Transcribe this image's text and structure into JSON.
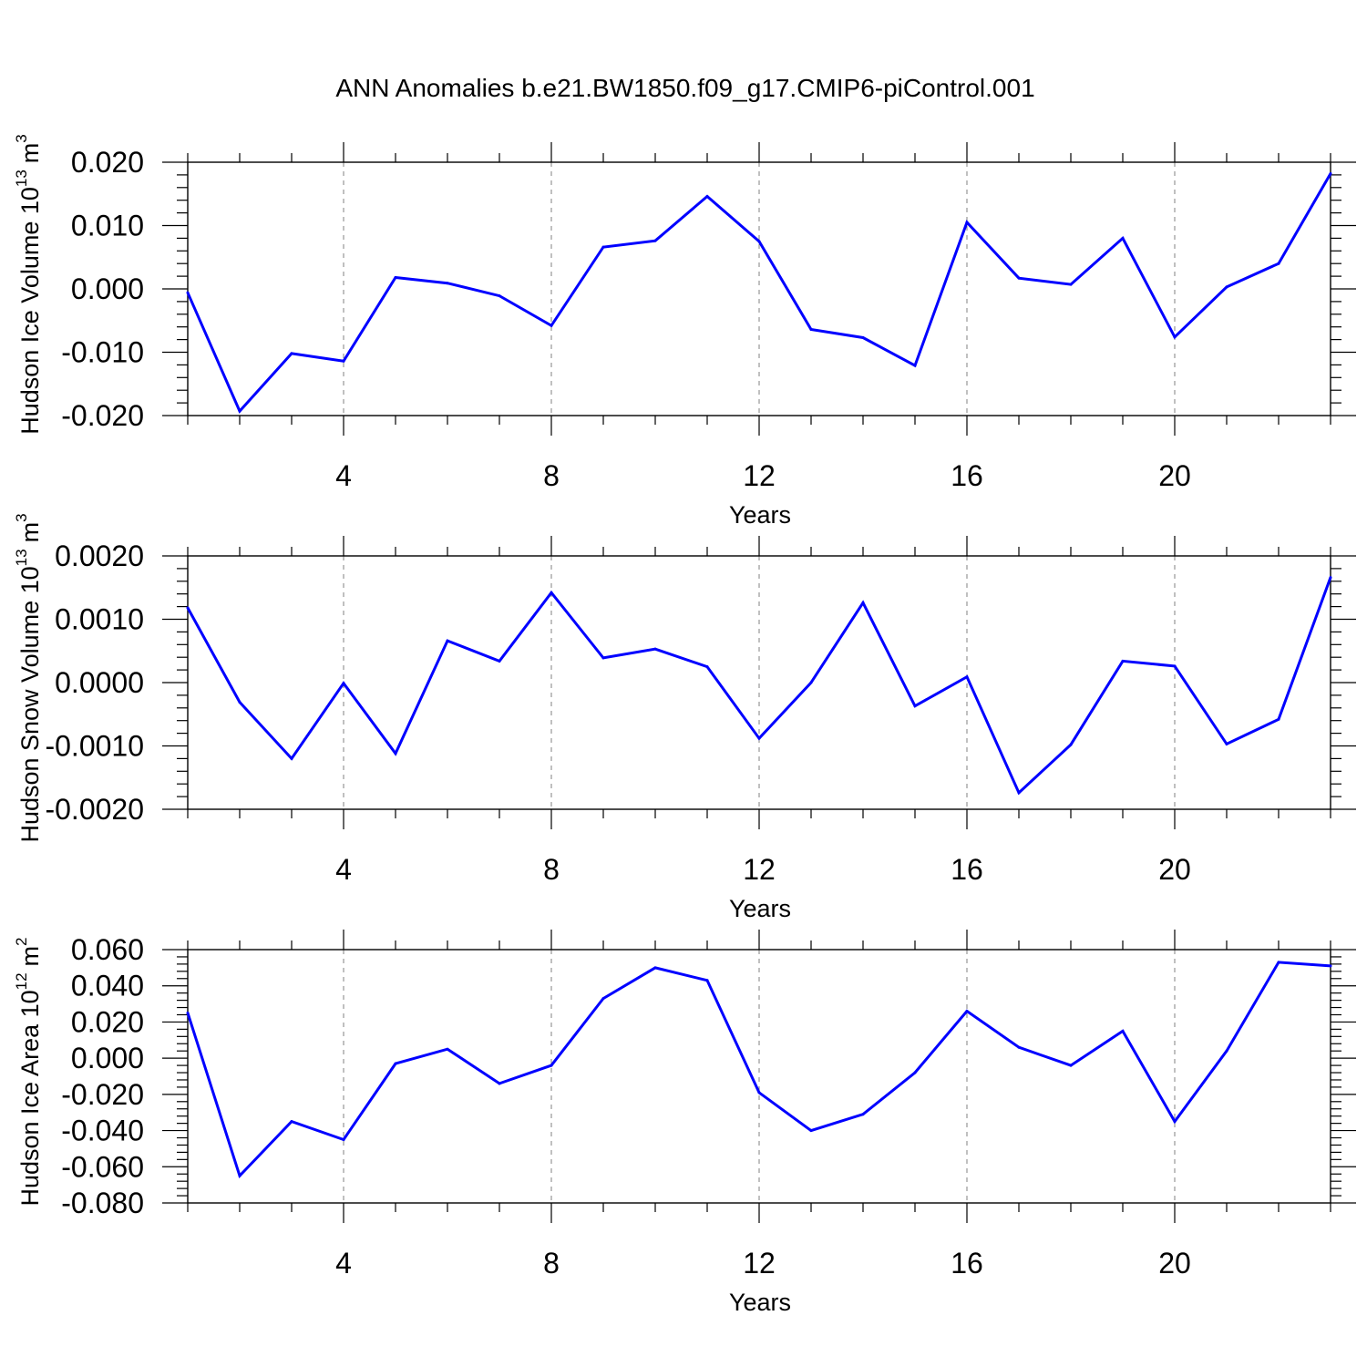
{
  "title": "ANN Anomalies b.e21.BW1850.f09_g17.CMIP6-piControl.001",
  "line_color": "#0000ff",
  "chart_data": [
    {
      "type": "line",
      "title": "",
      "ylabel_main": "Hudson Ice Volume 10",
      "ylabel_exp": "13",
      "ylabel_unit": "m",
      "ylabel_unit_exp": "3",
      "xlabel": "Years",
      "xlim": [
        1,
        23
      ],
      "ylim": [
        -0.02,
        0.02
      ],
      "xticks": [
        "4",
        "8",
        "12",
        "16",
        "20"
      ],
      "yticks": [
        "0.020",
        "0.010",
        "0.000",
        "-0.010",
        "-0.020"
      ],
      "grid_x": true,
      "series": [
        {
          "x": [
            1,
            2,
            3,
            4,
            5,
            6,
            7,
            8,
            9,
            10,
            11,
            12,
            13,
            14,
            15,
            16,
            17,
            18,
            19,
            20,
            21,
            22,
            23
          ],
          "values": [
            -0.0006,
            -0.0193,
            -0.0102,
            -0.0114,
            0.0018,
            0.0009,
            -0.0011,
            -0.0058,
            0.0066,
            0.0076,
            0.0146,
            0.0075,
            -0.0064,
            -0.0077,
            -0.0121,
            0.0105,
            0.0017,
            0.0007,
            0.008,
            -0.0076,
            0.0003,
            0.004,
            0.0182
          ]
        }
      ]
    },
    {
      "type": "line",
      "title": "",
      "ylabel_main": "Hudson Snow Volume 10",
      "ylabel_exp": "13",
      "ylabel_unit": "m",
      "ylabel_unit_exp": "3",
      "xlabel": "Years",
      "xlim": [
        1,
        23
      ],
      "ylim": [
        -0.002,
        0.002
      ],
      "xticks": [
        "4",
        "8",
        "12",
        "16",
        "20"
      ],
      "yticks": [
        "0.0020",
        "0.0010",
        "0.0000",
        "-0.0010",
        "-0.0020"
      ],
      "grid_x": true,
      "series": [
        {
          "x": [
            1,
            2,
            3,
            4,
            5,
            6,
            7,
            8,
            9,
            10,
            11,
            12,
            13,
            14,
            15,
            16,
            17,
            18,
            19,
            20,
            21,
            22,
            23
          ],
          "values": [
            0.00118,
            -0.00031,
            -0.0012,
            -1e-05,
            -0.00112,
            0.00066,
            0.00034,
            0.00142,
            0.00039,
            0.00053,
            0.00025,
            -0.00088,
            0.0,
            0.00126,
            -0.00037,
            9e-05,
            -0.00174,
            -0.00098,
            0.00034,
            0.00026,
            -0.00097,
            -0.00058,
            0.00166
          ]
        }
      ]
    },
    {
      "type": "line",
      "title": "",
      "ylabel_main": "Hudson Ice Area 10",
      "ylabel_exp": "12",
      "ylabel_unit": "m",
      "ylabel_unit_exp": "2",
      "xlabel": "Years",
      "xlim": [
        1,
        23
      ],
      "ylim": [
        -0.08,
        0.06
      ],
      "xticks": [
        "4",
        "8",
        "12",
        "16",
        "20"
      ],
      "yticks": [
        "0.060",
        "0.040",
        "0.020",
        "0.000",
        "-0.020",
        "-0.040",
        "-0.060",
        "-0.080"
      ],
      "grid_x": true,
      "series": [
        {
          "x": [
            1,
            2,
            3,
            4,
            5,
            6,
            7,
            8,
            9,
            10,
            11,
            12,
            13,
            14,
            15,
            16,
            17,
            18,
            19,
            20,
            21,
            22,
            23
          ],
          "values": [
            0.025,
            -0.065,
            -0.035,
            -0.045,
            -0.003,
            0.005,
            -0.014,
            -0.004,
            0.033,
            0.05,
            0.043,
            -0.019,
            -0.04,
            -0.031,
            -0.008,
            0.026,
            0.006,
            -0.004,
            0.015,
            -0.035,
            0.004,
            0.053,
            0.051
          ]
        }
      ]
    }
  ]
}
